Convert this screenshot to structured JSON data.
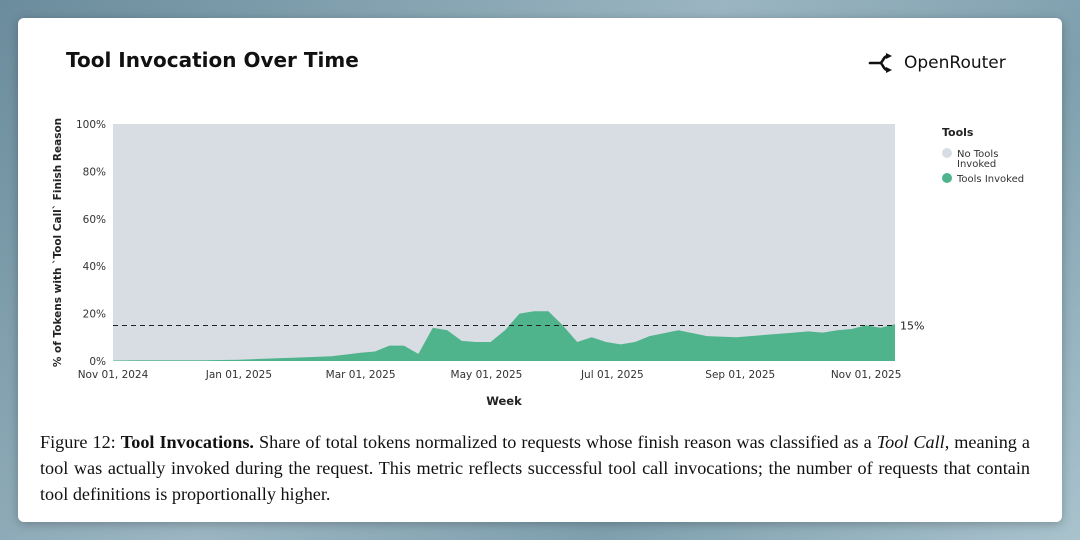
{
  "header": {
    "title": "Tool Invocation Over Time",
    "brand": "OpenRouter"
  },
  "caption": {
    "figure_label": "Figure 12:",
    "bold_title": "Tool Invocations.",
    "text_1": "Share of total tokens normalized to requests whose finish reason was classified as a",
    "italic_term": "Tool Call",
    "text_2": ", meaning a tool was actually invoked during the request. This metric reflects successful tool call invocations; the number of requests that contain tool definitions is proportionally higher."
  },
  "colors": {
    "tools_invoked": "#4fb48c",
    "no_tools": "#d8dde4",
    "reference_line": "#222222"
  },
  "chart_data": {
    "type": "area",
    "stacked": "percent",
    "xlabel": "Week",
    "ylabel": "% of Tokens with `Tool Call` Finish Reason",
    "ylim": [
      0,
      100
    ],
    "y_ticks": [
      "0%",
      "20%",
      "40%",
      "60%",
      "80%",
      "100%"
    ],
    "y_tick_values": [
      0,
      20,
      40,
      60,
      80,
      100
    ],
    "x_tick_labels": [
      "Nov 01, 2024",
      "Jan 01, 2025",
      "Mar 01, 2025",
      "May 01, 2025",
      "Jul 01, 2025",
      "Sep 01, 2025",
      "Nov 01, 2025"
    ],
    "x_tick_dates": [
      "2024-11-01",
      "2025-01-01",
      "2025-03-01",
      "2025-05-01",
      "2025-07-01",
      "2025-09-01",
      "2025-11-01"
    ],
    "xlim": [
      "2024-11-01",
      "2025-11-15"
    ],
    "legend_title": "Tools",
    "legend_position": "right",
    "reference_line": {
      "value": 15,
      "label": "15%",
      "style": "dashed"
    },
    "series": [
      {
        "name": "Tools Invoked",
        "x": [
          "2024-11-01",
          "2024-11-15",
          "2024-12-01",
          "2024-12-15",
          "2025-01-01",
          "2025-01-15",
          "2025-02-01",
          "2025-02-15",
          "2025-03-01",
          "2025-03-08",
          "2025-03-15",
          "2025-03-22",
          "2025-03-29",
          "2025-04-05",
          "2025-04-12",
          "2025-04-19",
          "2025-04-26",
          "2025-05-03",
          "2025-05-10",
          "2025-05-17",
          "2025-05-24",
          "2025-05-31",
          "2025-06-07",
          "2025-06-14",
          "2025-06-21",
          "2025-06-28",
          "2025-07-05",
          "2025-07-12",
          "2025-07-19",
          "2025-08-02",
          "2025-08-16",
          "2025-08-30",
          "2025-09-13",
          "2025-09-27",
          "2025-10-04",
          "2025-10-11",
          "2025-10-18",
          "2025-10-25",
          "2025-11-01",
          "2025-11-08",
          "2025-11-15"
        ],
        "values": [
          0.2,
          0.3,
          0.3,
          0.3,
          0.5,
          1,
          1.5,
          2,
          3.5,
          4,
          6.5,
          6.5,
          3,
          14,
          13,
          8.5,
          8,
          8,
          13,
          20,
          21,
          21,
          15,
          8,
          10,
          8,
          7,
          8,
          10.5,
          13,
          10.5,
          10,
          11,
          12,
          12.5,
          12,
          13,
          13.5,
          15,
          14,
          15.5
        ]
      },
      {
        "name": "No Tools Invoked",
        "remainder_of": 100
      }
    ]
  }
}
